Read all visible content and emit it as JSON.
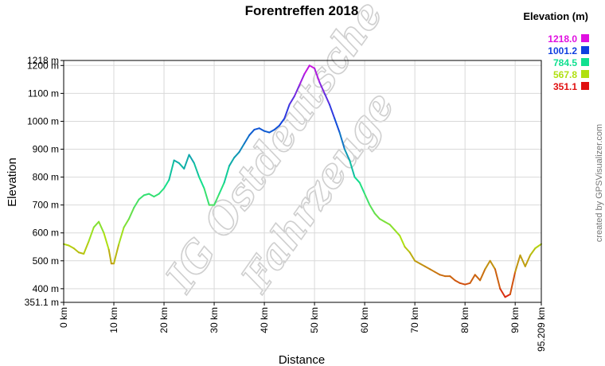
{
  "chart_data": {
    "type": "line",
    "title": "Forentreffen 2018",
    "xlabel": "Distance",
    "ylabel": "Elevation",
    "xlim": [
      0,
      95.209
    ],
    "ylim": [
      351.1,
      1218
    ],
    "grid": true,
    "x_ticks": [
      "0 km",
      "10 km",
      "20 km",
      "30 km",
      "40 km",
      "50 km",
      "60 km",
      "70 km",
      "80 km",
      "90 km",
      "95.209 km"
    ],
    "y_ticks": [
      "351.1 m",
      "400 m",
      "500 m",
      "600 m",
      "700 m",
      "800 m",
      "900 m",
      "1000 m",
      "1100 m",
      "1200 m",
      "1218 m"
    ],
    "legend": {
      "title": "Elevation (m)",
      "position": "top-right",
      "entries": [
        {
          "label": "1218.0",
          "color": "#e010e0"
        },
        {
          "label": "1001.2",
          "color": "#1040e0"
        },
        {
          "label": "784.5",
          "color": "#10e090"
        },
        {
          "label": "567.8",
          "color": "#b0e010"
        },
        {
          "label": "351.1",
          "color": "#e01010"
        }
      ]
    },
    "series": [
      {
        "x": [
          0,
          1,
          2,
          3,
          4,
          5,
          6,
          7,
          8,
          9,
          9.5,
          10,
          11,
          12,
          13,
          14,
          15,
          16,
          17,
          18,
          19,
          20,
          21,
          22,
          23,
          24,
          25,
          26,
          27,
          28,
          29,
          30,
          31,
          32,
          33,
          34,
          35,
          36,
          37,
          38,
          39,
          40,
          41,
          42,
          43,
          44,
          45,
          46,
          47,
          48,
          49,
          50,
          51,
          52,
          53,
          54,
          55,
          56,
          57,
          58,
          59,
          60,
          61,
          62,
          63,
          64,
          65,
          66,
          67,
          68,
          69,
          70,
          71,
          72,
          73,
          74,
          75,
          76,
          77,
          78,
          79,
          80,
          81,
          82,
          83,
          84,
          85,
          86,
          87,
          88,
          89,
          90,
          91,
          92,
          93,
          94,
          95.209
        ],
        "y": [
          560,
          555,
          545,
          530,
          525,
          570,
          620,
          640,
          600,
          540,
          490,
          490,
          560,
          620,
          650,
          690,
          720,
          735,
          740,
          730,
          740,
          760,
          790,
          860,
          850,
          830,
          880,
          850,
          800,
          760,
          700,
          700,
          740,
          780,
          840,
          870,
          890,
          920,
          950,
          970,
          975,
          965,
          960,
          970,
          985,
          1010,
          1060,
          1090,
          1130,
          1170,
          1200,
          1190,
          1140,
          1100,
          1060,
          1010,
          960,
          900,
          860,
          800,
          780,
          740,
          700,
          670,
          650,
          640,
          630,
          610,
          590,
          550,
          530,
          500,
          490,
          480,
          470,
          460,
          450,
          445,
          445,
          430,
          420,
          415,
          420,
          450,
          430,
          470,
          500,
          470,
          400,
          370,
          380,
          460,
          520,
          480,
          520,
          545,
          560
        ]
      }
    ]
  },
  "watermark_text": [
    "IG Ostdeutsche",
    "Fahrzeuge"
  ],
  "credit": "created by GPSVisualizer.com"
}
